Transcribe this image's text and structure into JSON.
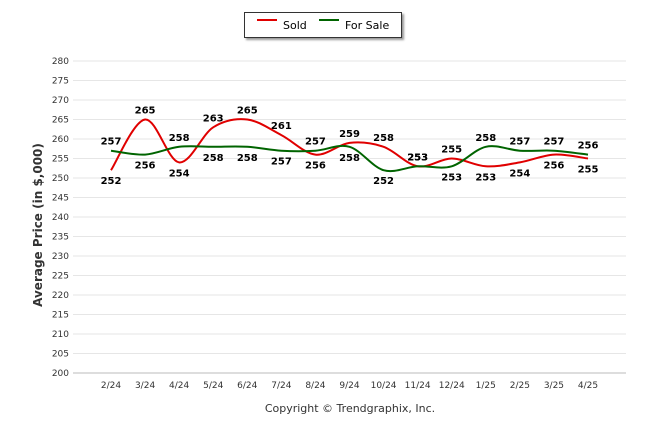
{
  "chart_data": {
    "type": "line",
    "title": "",
    "xlabel": "",
    "ylabel": "Average Price (in $,000)",
    "ylim": [
      200,
      280
    ],
    "ytick_step": 5,
    "grid": true,
    "legend": "top-center",
    "categories": [
      "2/24",
      "3/24",
      "4/24",
      "5/24",
      "6/24",
      "7/24",
      "8/24",
      "9/24",
      "10/24",
      "11/24",
      "12/24",
      "1/25",
      "2/25",
      "3/25",
      "4/25"
    ],
    "series": [
      {
        "name": "Sold",
        "color": "#e00000",
        "values": [
          252,
          265,
          254,
          263,
          265,
          261,
          256,
          259,
          258,
          253,
          255,
          253,
          254,
          256,
          255
        ]
      },
      {
        "name": "For Sale",
        "color": "#006400",
        "values": [
          257,
          256,
          258,
          258,
          258,
          257,
          257,
          258,
          252,
          253,
          253,
          258,
          257,
          257,
          256
        ]
      }
    ],
    "footer": "Copyright © Trendgraphix, Inc."
  }
}
